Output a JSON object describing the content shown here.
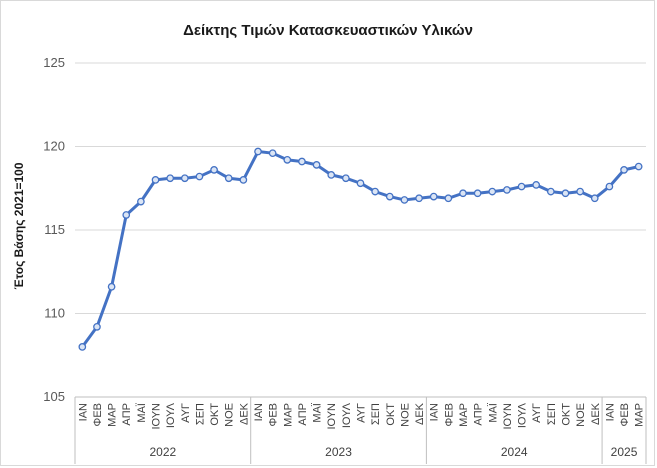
{
  "chart_data": {
    "type": "line",
    "title": "Δείκτης Τιμών Κατασκευαστικών Υλικών",
    "ylabel": "Έτος Βάσης 2021=100",
    "xlabel": "",
    "ylim": [
      105,
      125
    ],
    "yticks": [
      105,
      110,
      115,
      120,
      125
    ],
    "grid": true,
    "legend": "none",
    "line_color": "#4472C4",
    "categories": [
      "ΙΑΝ",
      "ΦΕΒ",
      "ΜΑΡ",
      "ΑΠΡ",
      "ΜΑΪ",
      "ΙΟΥΝ",
      "ΙΟΥΛ",
      "ΑΥΓ",
      "ΣΕΠ",
      "ΟΚΤ",
      "ΝΟΕ",
      "ΔΕΚ",
      "ΙΑΝ",
      "ΦΕΒ",
      "ΜΑΡ",
      "ΑΠΡ",
      "ΜΑΪ",
      "ΙΟΥΝ",
      "ΙΟΥΛ",
      "ΑΥΓ",
      "ΣΕΠ",
      "ΟΚΤ",
      "ΝΟΕ",
      "ΔΕΚ",
      "ΙΑΝ",
      "ΦΕΒ",
      "ΜΑΡ",
      "ΑΠΡ",
      "ΜΑΪ",
      "ΙΟΥΝ",
      "ΙΟΥΛ",
      "ΑΥΓ",
      "ΣΕΠ",
      "ΟΚΤ",
      "ΝΟΕ",
      "ΔΕΚ",
      "ΙΑΝ",
      "ΦΕΒ",
      "ΜΑΡ"
    ],
    "groups": [
      {
        "label": "2022",
        "count": 12
      },
      {
        "label": "2023",
        "count": 12
      },
      {
        "label": "2024",
        "count": 12
      },
      {
        "label": "2025",
        "count": 3
      }
    ],
    "series": [
      {
        "values": [
          108.0,
          109.2,
          111.6,
          115.9,
          116.7,
          118.0,
          118.1,
          118.1,
          118.2,
          118.6,
          118.1,
          118.0,
          119.7,
          119.6,
          119.2,
          119.1,
          118.9,
          118.3,
          118.1,
          117.8,
          117.3,
          117.0,
          116.8,
          116.9,
          117.0,
          116.9,
          117.2,
          117.2,
          117.3,
          117.4,
          117.6,
          117.7,
          117.3,
          117.2,
          117.3,
          116.9,
          117.6,
          118.6,
          118.8
        ]
      }
    ]
  }
}
